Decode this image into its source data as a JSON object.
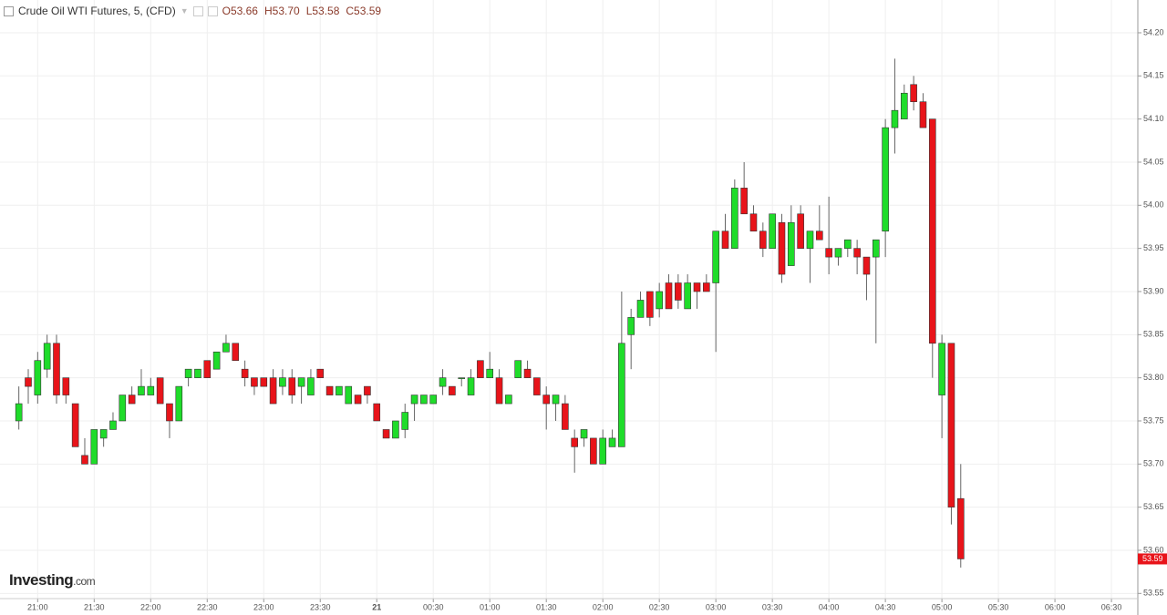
{
  "chart_data": {
    "type": "candlestick",
    "title": "Crude Oil WTI Futures, 5, (CFD)",
    "legend_labels": {
      "open": "O53.66",
      "high": "H53.70",
      "low": "L53.58",
      "close": "C53.59"
    },
    "watermark": {
      "brand": "Investing",
      "suffix": ".com"
    },
    "up_color": "#1fdc2a",
    "down_color": "#e8141a",
    "grid": true,
    "xlim": [
      "20:40",
      "06:44"
    ],
    "xticks": [
      "21:00",
      "21:30",
      "22:00",
      "22:30",
      "23:00",
      "23:30",
      {
        "value": "00:00",
        "label": "21"
      },
      "00:30",
      "01:00",
      "01:30",
      "02:00",
      "02:30",
      "03:00",
      "03:30",
      "04:00",
      "04:30",
      "05:00",
      "05:30",
      "06:00",
      "06:30"
    ],
    "ylim": [
      53.544,
      54.238
    ],
    "yticks": [
      {
        "value": 54.2,
        "label": "54.20"
      },
      54.15,
      {
        "value": 54.1,
        "label": "54.10"
      },
      54.05,
      {
        "value": 54.0,
        "label": "54.00"
      },
      53.95,
      {
        "value": 53.9,
        "label": "53.90"
      },
      53.85,
      {
        "value": 53.8,
        "label": "53.80"
      },
      53.75,
      {
        "value": 53.7,
        "label": "53.70"
      },
      53.65,
      {
        "value": 53.6,
        "label": "53.60"
      },
      53.55
    ],
    "x": [
      "20:50",
      "20:55",
      "21:00",
      "21:05",
      "21:10",
      "21:15",
      "21:20",
      "21:25",
      "21:30",
      "21:35",
      "21:40",
      "21:45",
      "21:50",
      "21:55",
      "22:00",
      "22:05",
      "22:10",
      "22:15",
      "22:20",
      "22:25",
      "22:30",
      "22:35",
      "22:40",
      "22:45",
      "22:50",
      "22:55",
      "23:00",
      "23:05",
      "23:10",
      "23:15",
      "23:20",
      "23:25",
      "23:30",
      "23:35",
      "23:40",
      "23:45",
      "23:50",
      "23:55",
      "00:00",
      "00:05",
      "00:10",
      "00:15",
      "00:20",
      "00:25",
      "00:30",
      "00:35",
      "00:40",
      "00:45",
      "00:50",
      "00:55",
      "01:00",
      "01:05",
      "01:10",
      "01:15",
      "01:20",
      "01:25",
      "01:30",
      "01:35",
      "01:40",
      "01:45",
      "01:50",
      "01:55",
      "02:00",
      "02:05",
      "02:10",
      "02:15",
      "02:20",
      "02:25",
      "02:30",
      "02:35",
      "02:40",
      "02:45",
      "02:50",
      "02:55",
      "03:00",
      "03:05",
      "03:10",
      "03:15",
      "03:20",
      "03:25",
      "03:30",
      "03:35",
      "03:40",
      "03:45",
      "03:50",
      "03:55",
      "04:00",
      "04:05",
      "04:10",
      "04:15",
      "04:20",
      "04:25",
      "04:30",
      "04:35",
      "04:40",
      "04:45",
      "04:50",
      "04:55",
      "05:00",
      "05:05",
      "05:10"
    ],
    "open": [
      53.75,
      53.8,
      53.78,
      53.81,
      53.84,
      53.8,
      53.77,
      53.71,
      53.7,
      53.73,
      53.74,
      53.75,
      53.78,
      53.78,
      53.78,
      53.8,
      53.77,
      53.75,
      53.8,
      53.8,
      53.82,
      53.81,
      53.83,
      53.84,
      53.81,
      53.8,
      53.8,
      53.8,
      53.79,
      53.8,
      53.79,
      53.78,
      53.81,
      53.79,
      53.78,
      53.77,
      53.78,
      53.79,
      53.77,
      53.74,
      53.73,
      53.74,
      53.77,
      53.77,
      53.77,
      53.79,
      53.79,
      53.8,
      53.78,
      53.82,
      53.8,
      53.8,
      53.77,
      53.8,
      53.81,
      53.8,
      53.78,
      53.77,
      53.77,
      53.73,
      53.73,
      53.73,
      53.7,
      53.72,
      53.72,
      53.85,
      53.87,
      53.9,
      53.88,
      53.91,
      53.91,
      53.88,
      53.91,
      53.91,
      53.91,
      53.97,
      53.95,
      54.02,
      53.99,
      53.97,
      53.95,
      53.98,
      53.93,
      53.99,
      53.95,
      53.97,
      53.95,
      53.94,
      53.95,
      53.95,
      53.94,
      53.94,
      53.97,
      54.09,
      54.1,
      54.14,
      54.12,
      54.1,
      53.78,
      53.84,
      53.66
    ],
    "high": [
      53.79,
      53.81,
      53.83,
      53.85,
      53.85,
      53.8,
      53.77,
      53.73,
      53.74,
      53.74,
      53.76,
      53.78,
      53.79,
      53.81,
      53.8,
      53.8,
      53.77,
      53.79,
      53.81,
      53.81,
      53.82,
      53.83,
      53.85,
      53.84,
      53.82,
      53.8,
      53.8,
      53.81,
      53.81,
      53.81,
      53.8,
      53.81,
      53.81,
      53.79,
      53.79,
      53.79,
      53.78,
      53.79,
      53.77,
      53.74,
      53.75,
      53.77,
      53.78,
      53.78,
      53.78,
      53.81,
      53.79,
      53.8,
      53.81,
      53.82,
      53.83,
      53.81,
      53.78,
      53.82,
      53.82,
      53.8,
      53.79,
      53.78,
      53.78,
      53.74,
      53.74,
      53.73,
      53.74,
      53.74,
      53.9,
      53.88,
      53.9,
      53.9,
      53.91,
      53.92,
      53.92,
      53.92,
      53.91,
      53.92,
      53.97,
      53.99,
      54.03,
      54.05,
      54.0,
      53.98,
      53.99,
      53.99,
      54.0,
      54.0,
      53.97,
      54.0,
      54.01,
      53.95,
      53.96,
      53.96,
      53.94,
      53.96,
      54.1,
      54.17,
      54.14,
      54.15,
      54.13,
      54.1,
      53.85,
      53.84,
      53.7
    ],
    "low": [
      53.74,
      53.77,
      53.77,
      53.8,
      53.77,
      53.77,
      53.72,
      53.7,
      53.7,
      53.72,
      53.74,
      53.75,
      53.77,
      53.78,
      53.78,
      53.77,
      53.73,
      53.75,
      53.79,
      53.8,
      53.8,
      53.81,
      53.83,
      53.82,
      53.79,
      53.78,
      53.79,
      53.77,
      53.78,
      53.77,
      53.77,
      53.78,
      53.8,
      53.78,
      53.78,
      53.77,
      53.77,
      53.77,
      53.75,
      53.73,
      53.73,
      53.73,
      53.75,
      53.77,
      53.77,
      53.78,
      53.78,
      53.79,
      53.78,
      53.8,
      53.8,
      53.77,
      53.77,
      53.8,
      53.8,
      53.78,
      53.74,
      53.75,
      53.74,
      53.69,
      53.72,
      53.7,
      53.7,
      53.72,
      53.72,
      53.81,
      53.87,
      53.86,
      53.87,
      53.88,
      53.88,
      53.88,
      53.88,
      53.9,
      53.83,
      53.95,
      53.95,
      53.99,
      53.97,
      53.94,
      53.95,
      53.91,
      53.93,
      53.95,
      53.91,
      53.96,
      53.92,
      53.93,
      53.94,
      53.92,
      53.89,
      53.84,
      53.94,
      54.06,
      54.1,
      54.11,
      54.09,
      53.8,
      53.73,
      53.63,
      53.58
    ],
    "close": [
      53.77,
      53.79,
      53.82,
      53.84,
      53.78,
      53.78,
      53.72,
      53.7,
      53.74,
      53.74,
      53.75,
      53.78,
      53.77,
      53.79,
      53.79,
      53.77,
      53.75,
      53.79,
      53.81,
      53.81,
      53.8,
      53.83,
      53.84,
      53.82,
      53.8,
      53.79,
      53.79,
      53.77,
      53.8,
      53.78,
      53.8,
      53.8,
      53.8,
      53.78,
      53.79,
      53.79,
      53.77,
      53.78,
      53.75,
      53.73,
      53.75,
      53.76,
      53.78,
      53.78,
      53.78,
      53.8,
      53.78,
      53.8,
      53.8,
      53.8,
      53.81,
      53.77,
      53.78,
      53.82,
      53.8,
      53.78,
      53.77,
      53.78,
      53.74,
      53.72,
      53.74,
      53.7,
      53.73,
      53.73,
      53.84,
      53.87,
      53.89,
      53.87,
      53.9,
      53.88,
      53.89,
      53.91,
      53.9,
      53.9,
      53.97,
      53.95,
      54.02,
      53.99,
      53.97,
      53.95,
      53.99,
      53.92,
      53.98,
      53.95,
      53.97,
      53.96,
      53.94,
      53.95,
      53.96,
      53.94,
      53.92,
      53.96,
      54.09,
      54.11,
      54.13,
      54.12,
      54.09,
      53.84,
      53.84,
      53.65,
      53.59
    ]
  }
}
